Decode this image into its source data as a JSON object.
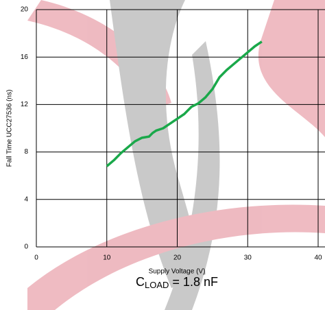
{
  "chart_data": {
    "type": "line",
    "x_label": "Supply Voltage (V)",
    "y_label": "Fall Time UCC27536 (ns)",
    "annotation": {
      "base": "C",
      "sub": "LOAD",
      "rest": " = 1.8 nF"
    },
    "x": [
      10,
      11,
      12,
      13,
      14,
      15,
      16,
      16.5,
      17,
      18,
      19,
      20,
      21,
      22,
      23,
      24,
      25,
      26,
      27,
      28,
      29,
      30,
      31,
      32
    ],
    "series": [
      {
        "color": "#1aa84a",
        "values": [
          6.8,
          7.3,
          7.9,
          8.4,
          8.9,
          9.2,
          9.3,
          9.6,
          9.8,
          10.0,
          10.4,
          10.8,
          11.2,
          11.8,
          12.1,
          12.6,
          13.3,
          14.3,
          14.9,
          15.4,
          15.9,
          16.4,
          16.9,
          17.3
        ]
      }
    ],
    "xlim": [
      0,
      40
    ],
    "xticks": [
      0,
      10,
      20,
      30,
      40
    ],
    "ylim": [
      0,
      20
    ],
    "yticks": [
      0,
      4,
      8,
      12,
      16,
      20
    ],
    "grid": true
  }
}
